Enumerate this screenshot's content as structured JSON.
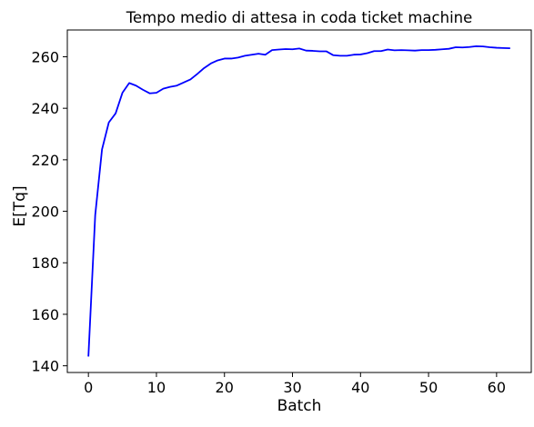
{
  "chart_data": {
    "type": "line",
    "title": "Tempo medio di attesa in coda ticket machine",
    "xlabel": "Batch",
    "ylabel": "E[Tq]",
    "xlim": [
      -3.1,
      65.1
    ],
    "ylim": [
      137.4,
      270.4
    ],
    "x_ticks": [
      0,
      10,
      20,
      30,
      40,
      50,
      60
    ],
    "y_ticks": [
      140,
      160,
      180,
      200,
      220,
      240,
      260
    ],
    "grid": false,
    "legend": "none",
    "series": [
      {
        "color": "#0000ff",
        "x": [
          0,
          1,
          2,
          3,
          4,
          5,
          6,
          7,
          8,
          9,
          10,
          11,
          12,
          13,
          14,
          15,
          16,
          17,
          18,
          19,
          20,
          21,
          22,
          23,
          24,
          25,
          26,
          27,
          28,
          29,
          30,
          31,
          32,
          33,
          34,
          35,
          36,
          37,
          38,
          39,
          40,
          41,
          42,
          43,
          44,
          45,
          46,
          47,
          48,
          49,
          50,
          51,
          52,
          53,
          54,
          55,
          56,
          57,
          58,
          59,
          60,
          61,
          62
        ],
        "y": [
          143.6,
          198.5,
          224.0,
          234.5,
          238.0,
          246.0,
          249.8,
          248.8,
          247.2,
          245.8,
          246.0,
          247.6,
          248.3,
          248.8,
          250.0,
          251.2,
          253.3,
          255.6,
          257.4,
          258.6,
          259.3,
          259.3,
          259.7,
          260.4,
          260.8,
          261.2,
          260.8,
          262.6,
          262.8,
          263.0,
          262.9,
          263.2,
          262.4,
          262.3,
          262.1,
          262.1,
          260.6,
          260.4,
          260.4,
          260.8,
          260.9,
          261.4,
          262.2,
          262.2,
          262.8,
          262.5,
          262.6,
          262.5,
          262.4,
          262.6,
          262.6,
          262.7,
          262.9,
          263.1,
          263.7,
          263.6,
          263.8,
          264.1,
          264.0,
          263.7,
          263.5,
          263.4,
          263.3
        ]
      }
    ]
  }
}
